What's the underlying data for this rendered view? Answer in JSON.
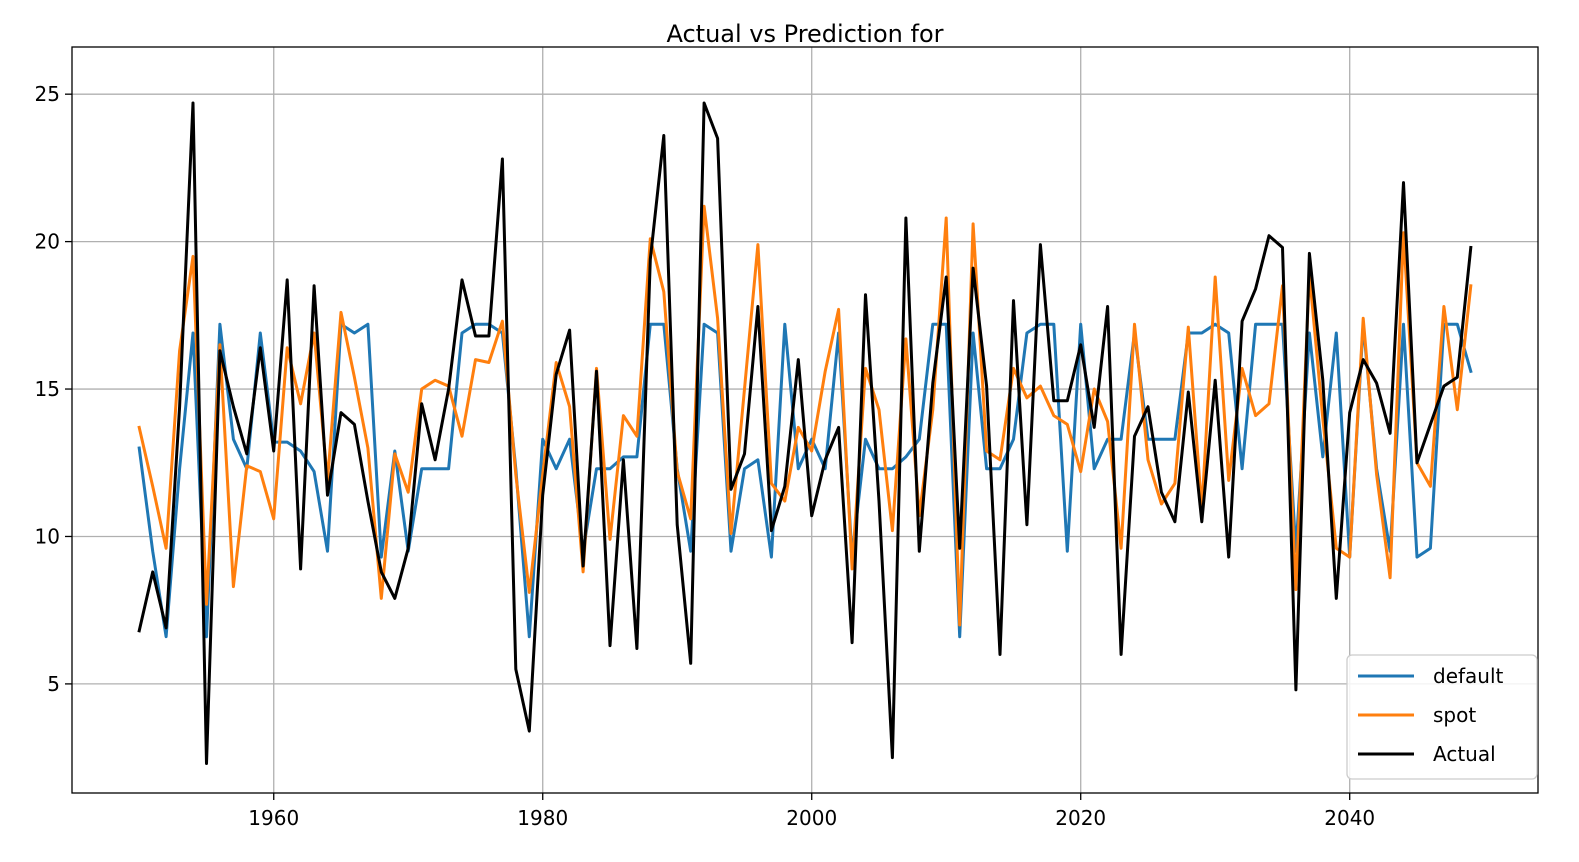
{
  "chart_data": {
    "type": "line",
    "title": "Actual vs Prediction for",
    "xlabel": "",
    "ylabel": "",
    "xlim": [
      1945,
      2054
    ],
    "ylim": [
      1.3,
      26.6
    ],
    "x_ticks": [
      1960,
      1980,
      2000,
      2020,
      2040
    ],
    "y_ticks": [
      5,
      10,
      15,
      20,
      25
    ],
    "grid": true,
    "legend_position": "lower right",
    "x": [
      1950,
      1951,
      1952,
      1953,
      1954,
      1955,
      1956,
      1957,
      1958,
      1959,
      1960,
      1961,
      1962,
      1963,
      1964,
      1965,
      1966,
      1967,
      1968,
      1969,
      1970,
      1971,
      1972,
      1973,
      1974,
      1975,
      1976,
      1977,
      1978,
      1979,
      1980,
      1981,
      1982,
      1983,
      1984,
      1985,
      1986,
      1987,
      1988,
      1989,
      1990,
      1991,
      1992,
      1993,
      1994,
      1995,
      1996,
      1997,
      1998,
      1999,
      2000,
      2001,
      2002,
      2003,
      2004,
      2005,
      2006,
      2007,
      2008,
      2009,
      2010,
      2011,
      2012,
      2013,
      2014,
      2015,
      2016,
      2017,
      2018,
      2019,
      2020,
      2021,
      2022,
      2023,
      2024,
      2025,
      2026,
      2027,
      2028,
      2029,
      2030,
      2031,
      2032,
      2033,
      2034,
      2035,
      2036,
      2037,
      2038,
      2039,
      2040,
      2041,
      2042,
      2043,
      2044,
      2045,
      2046,
      2047,
      2048,
      2049
    ],
    "series": [
      {
        "name": "default",
        "color": "#1f77b4",
        "values": [
          13.0,
          9.5,
          6.6,
          12.3,
          16.9,
          6.6,
          17.2,
          13.3,
          12.3,
          16.9,
          13.2,
          13.2,
          12.9,
          12.2,
          9.5,
          17.2,
          16.9,
          17.2,
          9.3,
          12.9,
          9.5,
          12.3,
          12.3,
          12.3,
          16.9,
          17.2,
          17.2,
          16.9,
          12.3,
          6.6,
          13.3,
          12.3,
          13.3,
          9.5,
          12.3,
          12.3,
          12.7,
          12.7,
          17.2,
          17.2,
          12.3,
          9.5,
          17.2,
          16.9,
          9.5,
          12.3,
          12.6,
          9.3,
          17.2,
          12.3,
          13.3,
          12.3,
          16.9,
          9.3,
          13.3,
          12.3,
          12.3,
          12.7,
          13.3,
          17.2,
          17.2,
          6.6,
          16.9,
          12.3,
          12.3,
          13.3,
          16.9,
          17.2,
          17.2,
          9.5,
          17.2,
          12.3,
          13.3,
          13.3,
          16.9,
          13.3,
          13.3,
          13.3,
          16.9,
          16.9,
          17.2,
          16.9,
          12.3,
          17.2,
          17.2,
          17.2,
          9.5,
          16.9,
          12.7,
          16.9,
          9.3,
          17.2,
          12.3,
          9.5,
          17.2,
          9.3,
          9.6,
          17.2,
          17.2,
          15.6
        ]
      },
      {
        "name": "spot",
        "color": "#ff7f0e",
        "values": [
          13.7,
          11.7,
          9.6,
          16.3,
          19.5,
          7.7,
          16.5,
          8.3,
          12.4,
          12.2,
          10.6,
          16.4,
          14.5,
          16.9,
          11.9,
          17.6,
          15.4,
          13.0,
          7.9,
          12.8,
          11.5,
          15.0,
          15.3,
          15.1,
          13.4,
          16.0,
          15.9,
          17.3,
          12.1,
          8.1,
          12.1,
          15.9,
          14.4,
          8.8,
          15.7,
          9.9,
          14.1,
          13.4,
          20.1,
          18.3,
          12.2,
          10.6,
          21.2,
          17.4,
          10.1,
          15.0,
          19.9,
          11.8,
          11.2,
          13.7,
          12.9,
          15.6,
          17.7,
          8.9,
          15.7,
          14.3,
          10.2,
          16.7,
          10.7,
          14.3,
          20.8,
          7.0,
          20.6,
          12.9,
          12.6,
          15.7,
          14.7,
          15.1,
          14.1,
          13.8,
          12.2,
          15.0,
          13.9,
          9.6,
          17.2,
          12.6,
          11.1,
          11.8,
          17.1,
          10.9,
          18.8,
          11.9,
          15.7,
          14.1,
          14.5,
          18.5,
          8.2,
          18.9,
          14.0,
          9.6,
          9.3,
          17.4,
          12.1,
          8.6,
          20.3,
          12.5,
          11.7,
          17.8,
          14.3,
          18.5
        ]
      },
      {
        "name": "Actual",
        "color": "#000000",
        "values": [
          6.8,
          8.8,
          6.9,
          14.4,
          24.7,
          2.3,
          16.3,
          14.4,
          12.8,
          16.4,
          12.9,
          18.7,
          8.9,
          18.5,
          11.4,
          14.2,
          13.8,
          11.2,
          8.8,
          7.9,
          9.6,
          14.5,
          12.6,
          15.0,
          18.7,
          16.8,
          16.8,
          22.8,
          5.5,
          3.4,
          11.4,
          15.5,
          17.0,
          9.0,
          15.6,
          6.3,
          12.6,
          6.2,
          19.4,
          23.6,
          10.4,
          5.7,
          24.7,
          23.5,
          11.6,
          12.8,
          17.8,
          10.2,
          11.7,
          16.0,
          10.7,
          12.6,
          13.7,
          6.4,
          18.2,
          11.2,
          2.5,
          20.8,
          9.5,
          15.2,
          18.8,
          9.6,
          19.1,
          15.1,
          6.0,
          18.0,
          10.4,
          19.9,
          14.6,
          14.6,
          16.5,
          13.7,
          17.8,
          6.0,
          13.4,
          14.4,
          11.5,
          10.5,
          14.9,
          10.5,
          15.3,
          9.3,
          17.3,
          18.4,
          20.2,
          19.8,
          4.8,
          19.6,
          15.3,
          7.9,
          14.2,
          16.0,
          15.2,
          13.5,
          22.0,
          12.5,
          13.8,
          15.1,
          15.4,
          19.8
        ]
      }
    ]
  }
}
